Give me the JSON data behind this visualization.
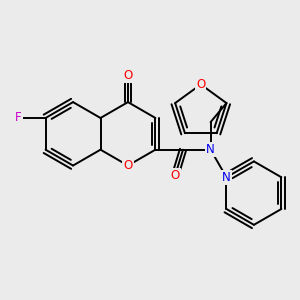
{
  "background_color": "#ebebeb",
  "bond_color": "#000000",
  "bond_width": 1.4,
  "atom_colors": {
    "F": "#cc00cc",
    "O": "#ff0000",
    "N": "#0000ee",
    "C": "#000000"
  },
  "font_size": 8.5,
  "figsize": [
    3.0,
    3.0
  ],
  "dpi": 100
}
